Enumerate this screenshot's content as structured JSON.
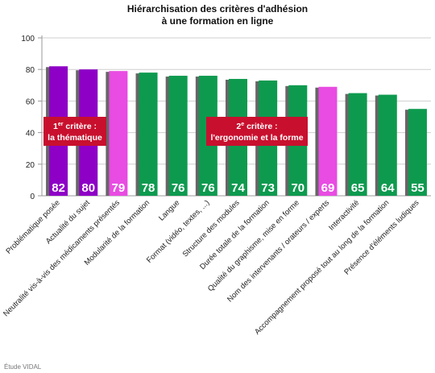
{
  "title_line1": "Hiérarchisation des critères d'adhésion",
  "title_line2": "à une formation en ligne",
  "source": "Étude VIDAL",
  "colors": {
    "purple": "#8e00c6",
    "pink": "#e84ce2",
    "green": "#0d9a4f",
    "shadow": "#666666",
    "callout": "#c8102e",
    "axis": "#9a9a9a",
    "grid": "#cfcfcf"
  },
  "callouts": [
    {
      "sup_prefix": "1",
      "sup": "er",
      "line1": " critère :",
      "line2": "la thématique"
    },
    {
      "sup_prefix": "2",
      "sup": "e",
      "line1": " critère :",
      "line2": "l'ergonomie et la forme"
    }
  ],
  "chart_data": {
    "type": "bar",
    "title": "Hiérarchisation des critères d'adhésion à une formation en ligne",
    "xlabel": "",
    "ylabel": "",
    "ylim": [
      0,
      100
    ],
    "yticks": [
      0,
      20,
      40,
      60,
      80,
      100
    ],
    "grid": true,
    "categories": [
      "Problématique posée",
      "Actualité du sujet",
      "Neutralité vis-à-vis des médicaments présentés",
      "Modularité de la formation",
      "Langue",
      "Format (vidéo, textes, ...)",
      "Structure des modules",
      "Durée totale de la formation",
      "Qualité du graphisme, mise en forme",
      "Nom des intervenants / orateurs / experts",
      "Interactivité",
      "Accompagnement proposé tout au long de la formation",
      "Présence d'éléments ludiques"
    ],
    "values": [
      82,
      80,
      79,
      78,
      76,
      76,
      74,
      73,
      70,
      69,
      65,
      64,
      55
    ],
    "bar_colors": [
      "purple",
      "purple",
      "pink",
      "green",
      "green",
      "green",
      "green",
      "green",
      "green",
      "pink",
      "green",
      "green",
      "green"
    ]
  }
}
